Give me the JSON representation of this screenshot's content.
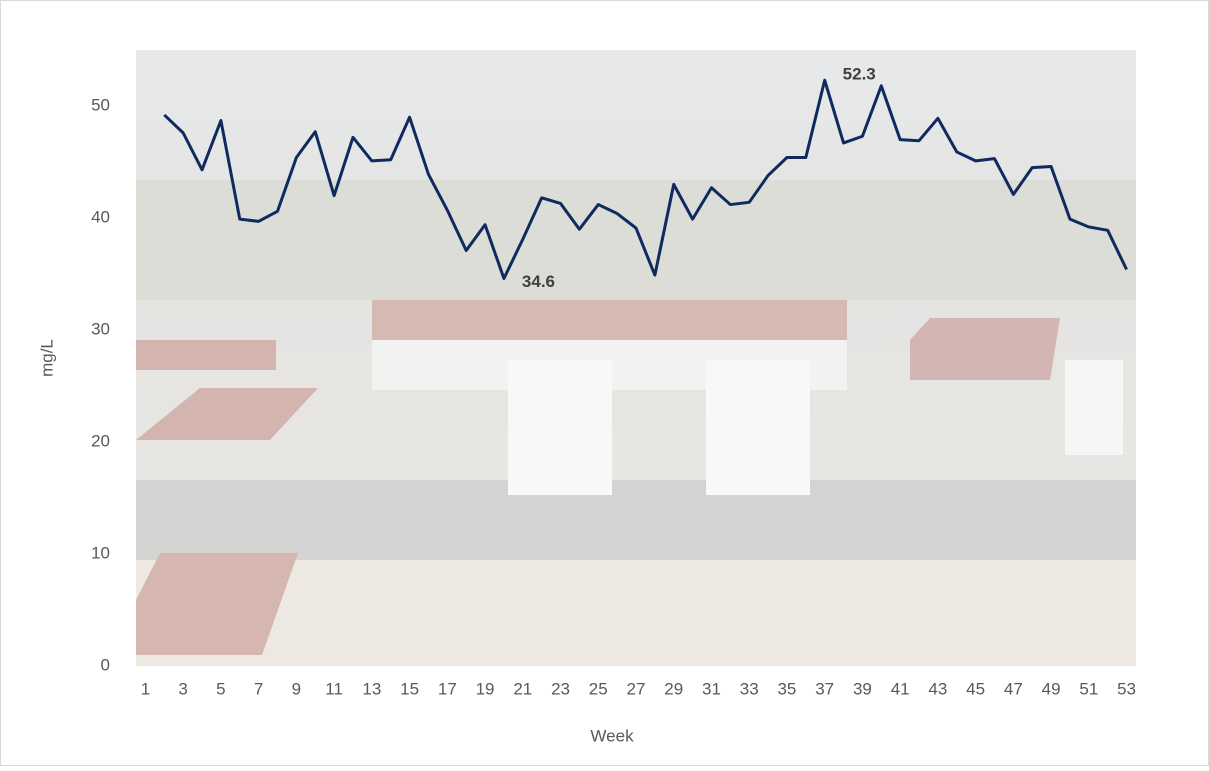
{
  "chart_data": {
    "type": "line",
    "categories": [
      "1",
      null,
      "3",
      null,
      "5",
      null,
      "7",
      null,
      "9",
      null,
      "11",
      null,
      "13",
      null,
      "15",
      null,
      "17",
      null,
      "19",
      null,
      "21",
      null,
      "23",
      null,
      "25",
      null,
      "27",
      null,
      "29",
      null,
      "31",
      null,
      "33",
      null,
      "35",
      null,
      "37",
      null,
      "39",
      null,
      "41",
      null,
      "43",
      null,
      "45",
      null,
      "47",
      null,
      "49",
      null,
      "51",
      null,
      "53"
    ],
    "values": [
      null,
      49.2,
      47.6,
      44.3,
      48.7,
      39.9,
      39.7,
      40.6,
      45.4,
      47.7,
      42.0,
      47.2,
      45.1,
      45.2,
      49.0,
      43.9,
      40.7,
      37.1,
      39.4,
      34.6,
      38.1,
      41.8,
      41.3,
      39.0,
      41.2,
      40.4,
      39.1,
      34.9,
      43.0,
      39.9,
      42.7,
      41.2,
      41.4,
      43.8,
      45.4,
      45.4,
      52.3,
      46.7,
      47.3,
      51.8,
      47.0,
      46.9,
      48.9,
      45.9,
      45.1,
      45.3,
      42.1,
      44.5,
      44.6,
      39.9,
      39.2,
      38.9,
      35.4
    ],
    "value_labels": [
      null,
      null,
      null,
      null,
      null,
      null,
      null,
      null,
      null,
      null,
      null,
      null,
      null,
      null,
      null,
      null,
      null,
      null,
      null,
      "34.6",
      null,
      null,
      null,
      null,
      null,
      null,
      null,
      null,
      null,
      null,
      null,
      null,
      null,
      null,
      null,
      null,
      "52.3",
      null,
      null,
      null,
      null,
      null,
      null,
      null,
      null,
      null,
      null,
      null,
      null,
      null,
      null,
      null,
      null
    ],
    "color": "#0f2a5f",
    "ylim": [
      0,
      55
    ],
    "yticks": [
      0,
      10,
      20,
      30,
      40,
      50
    ],
    "x_label": "Week",
    "y_label": "mg/L"
  }
}
